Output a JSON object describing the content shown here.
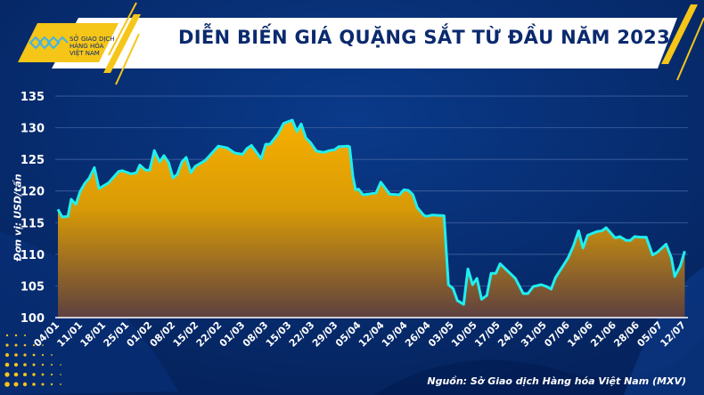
{
  "header": {
    "title": "DIỄN BIẾN GIÁ QUẶNG SẮT TỪ ĐẦU NĂM 2023",
    "logo_lines": [
      "SỞ GIAO DỊCH",
      "HÀNG HÓA",
      "VIỆT NAM"
    ]
  },
  "footer": {
    "source": "Nguồn: Sở Giao dịch Hàng hóa Việt Nam (MXV)"
  },
  "colors": {
    "line": "#1ff0f0",
    "fill_top": "#f7b000",
    "fill_bottom": "#5e4040",
    "background": "#06286b",
    "accent": "#f5c518"
  },
  "chart_data": {
    "type": "area",
    "title": "DIỄN BIẾN GIÁ QUẶNG SẮT TỪ ĐẦU NĂM 2023",
    "ylabel": "Đơn vị: USD/tấn",
    "xlabel": "",
    "x_unit": "days since 04/01/2023",
    "ylim": [
      100,
      135
    ],
    "yticks": [
      100,
      105,
      110,
      115,
      120,
      125,
      130,
      135
    ],
    "xlim": [
      0,
      189
    ],
    "xtick_labels": [
      "04/01",
      "11/01",
      "18/01",
      "25/01",
      "01/02",
      "08/02",
      "15/02",
      "22/02",
      "01/03",
      "08/03",
      "15/03",
      "22/03",
      "29/03",
      "05/04",
      "12/04",
      "19/04",
      "26/04",
      "03/05",
      "10/05",
      "17/05",
      "24/05",
      "31/05",
      "07/06",
      "14/06",
      "21/06",
      "28/06",
      "05/07",
      "12/07"
    ],
    "grid": true,
    "series": [
      {
        "name": "Quặng sắt",
        "points": [
          [
            0,
            117.1
          ],
          [
            1.3,
            115.9
          ],
          [
            3,
            116.0
          ],
          [
            4,
            118.7
          ],
          [
            5.4,
            117.9
          ],
          [
            6.7,
            119.9
          ],
          [
            8.1,
            121.2
          ],
          [
            9.4,
            122.0
          ],
          [
            11,
            123.7
          ],
          [
            12.4,
            120.4
          ],
          [
            15.3,
            121.3
          ],
          [
            18.3,
            123.1
          ],
          [
            19.4,
            123.2
          ],
          [
            22.1,
            122.7
          ],
          [
            23.7,
            122.9
          ],
          [
            24.7,
            124.1
          ],
          [
            26.4,
            123.3
          ],
          [
            27.7,
            123.3
          ],
          [
            29.1,
            126.4
          ],
          [
            30.7,
            124.6
          ],
          [
            32,
            125.6
          ],
          [
            33.4,
            124.5
          ],
          [
            34.7,
            122.1
          ],
          [
            36,
            122.6
          ],
          [
            37.4,
            124.6
          ],
          [
            38.7,
            125.3
          ],
          [
            40.1,
            122.9
          ],
          [
            41.4,
            123.9
          ],
          [
            44.4,
            124.8
          ],
          [
            48.4,
            127.1
          ],
          [
            51.1,
            126.8
          ],
          [
            53.3,
            126.0
          ],
          [
            55.7,
            125.8
          ],
          [
            57,
            126.7
          ],
          [
            58.4,
            127.2
          ],
          [
            61.3,
            125.1
          ],
          [
            62.7,
            127.4
          ],
          [
            64,
            127.4
          ],
          [
            66.4,
            129.0
          ],
          [
            68.1,
            130.7
          ],
          [
            70.7,
            131.2
          ],
          [
            72.1,
            129.4
          ],
          [
            73.4,
            130.6
          ],
          [
            74.8,
            128.4
          ],
          [
            76.1,
            127.7
          ],
          [
            78,
            126.3
          ],
          [
            80.2,
            126.1
          ],
          [
            82,
            126.4
          ],
          [
            83.4,
            126.5
          ],
          [
            84.7,
            127.0
          ],
          [
            87.4,
            127.1
          ],
          [
            88,
            127.0
          ],
          [
            89,
            122.3
          ],
          [
            89.8,
            120.2
          ],
          [
            90.7,
            120.3
          ],
          [
            92,
            119.4
          ],
          [
            93.6,
            119.5
          ],
          [
            96,
            119.7
          ],
          [
            97.4,
            121.4
          ],
          [
            100.1,
            119.5
          ],
          [
            103,
            119.4
          ],
          [
            104.4,
            120.2
          ],
          [
            105.7,
            120.1
          ],
          [
            107.1,
            119.4
          ],
          [
            108.4,
            117.4
          ],
          [
            110.3,
            116.2
          ],
          [
            111.1,
            116.0
          ],
          [
            113,
            116.2
          ],
          [
            116.5,
            116.1
          ],
          [
            117.8,
            105.2
          ],
          [
            119.2,
            104.6
          ],
          [
            120.5,
            102.7
          ],
          [
            122.4,
            102.1
          ],
          [
            123.7,
            107.7
          ],
          [
            125.1,
            105.2
          ],
          [
            126.4,
            106.2
          ],
          [
            127.8,
            102.9
          ],
          [
            129.4,
            103.5
          ],
          [
            130.7,
            107.0
          ],
          [
            132.1,
            107.0
          ],
          [
            133.4,
            108.5
          ],
          [
            135.8,
            107.3
          ],
          [
            138,
            106.2
          ],
          [
            140.4,
            103.8
          ],
          [
            141.8,
            103.8
          ],
          [
            143.4,
            104.9
          ],
          [
            145.8,
            105.2
          ],
          [
            147.4,
            104.9
          ],
          [
            148.8,
            104.5
          ],
          [
            150.1,
            106.3
          ],
          [
            153.9,
            109.4
          ],
          [
            155.5,
            111.3
          ],
          [
            157.1,
            113.7
          ],
          [
            158.4,
            111.0
          ],
          [
            159.8,
            113.0
          ],
          [
            162.7,
            113.6
          ],
          [
            164.1,
            113.7
          ],
          [
            165.4,
            114.2
          ],
          [
            168.1,
            112.6
          ],
          [
            169.5,
            112.8
          ],
          [
            171.4,
            112.2
          ],
          [
            172.7,
            112.2
          ],
          [
            174,
            112.8
          ],
          [
            175.7,
            112.7
          ],
          [
            177.5,
            112.7
          ],
          [
            179.4,
            109.9
          ],
          [
            180.8,
            110.3
          ],
          [
            183.5,
            111.6
          ],
          [
            185.1,
            109.4
          ],
          [
            186.1,
            106.5
          ],
          [
            187.8,
            108.2
          ],
          [
            189.1,
            110.5
          ]
        ]
      }
    ]
  }
}
